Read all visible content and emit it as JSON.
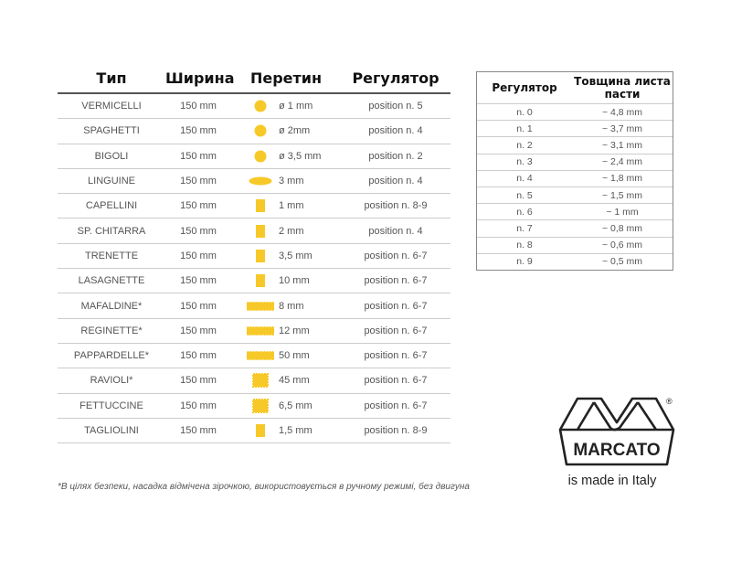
{
  "main_table": {
    "headers": [
      "Тип",
      "Ширина",
      "Перетин",
      "Регулятор"
    ],
    "rows": [
      {
        "type": "VERMICELLI",
        "width": "150 mm",
        "shape": "circle",
        "section": "ø 1 mm",
        "regulator": "position n. 5"
      },
      {
        "type": "SPAGHETTI",
        "width": "150 mm",
        "shape": "circle",
        "section": "ø 2mm",
        "regulator": "position n. 4"
      },
      {
        "type": "BIGOLI",
        "width": "150 mm",
        "shape": "circle",
        "section": "ø 3,5 mm",
        "regulator": "position n. 2"
      },
      {
        "type": "LINGUINE",
        "width": "150 mm",
        "shape": "ellipse",
        "section": "3 mm",
        "regulator": "position n. 4"
      },
      {
        "type": "CAPELLINI",
        "width": "150 mm",
        "shape": "square",
        "section": "1 mm",
        "regulator": "position n. 8-9"
      },
      {
        "type": "SP. CHITARRA",
        "width": "150 mm",
        "shape": "square",
        "section": "2 mm",
        "regulator": "position n. 4"
      },
      {
        "type": "TRENETTE",
        "width": "150 mm",
        "shape": "square",
        "section": "3,5 mm",
        "regulator": "position n. 6-7"
      },
      {
        "type": "LASAGNETTE",
        "width": "150 mm",
        "shape": "square",
        "section": "10 mm",
        "regulator": "position n. 6-7"
      },
      {
        "type": "MAFALDINE*",
        "width": "150 mm",
        "shape": "wavy-wide",
        "section": "8 mm",
        "regulator": "position n. 6-7"
      },
      {
        "type": "REGINETTE*",
        "width": "150 mm",
        "shape": "wavy-wide",
        "section": "12 mm",
        "regulator": "position n. 6-7"
      },
      {
        "type": "PAPPARDELLE*",
        "width": "150 mm",
        "shape": "wavy-wide",
        "section": "50 mm",
        "regulator": "position n. 6-7"
      },
      {
        "type": "RAVIOLI*",
        "width": "150 mm",
        "shape": "wavy-square",
        "section": "45 mm",
        "regulator": "position n. 6-7"
      },
      {
        "type": "FETTUCCINE",
        "width": "150 mm",
        "shape": "wavy-square",
        "section": "6,5 mm",
        "regulator": "position n. 6-7"
      },
      {
        "type": "TAGLIOLINI",
        "width": "150 mm",
        "shape": "square",
        "section": "1,5 mm",
        "regulator": "position n. 8-9"
      }
    ]
  },
  "thickness_table": {
    "headers": [
      "Регулятор",
      "Товщина листа пасти"
    ],
    "rows": [
      {
        "position": "n. 0",
        "thickness": "~ 4,8 mm"
      },
      {
        "position": "n. 1",
        "thickness": "~ 3,7 mm"
      },
      {
        "position": "n. 2",
        "thickness": "~ 3,1 mm"
      },
      {
        "position": "n. 3",
        "thickness": "~ 2,4 mm"
      },
      {
        "position": "n. 4",
        "thickness": "~ 1,8 mm"
      },
      {
        "position": "n. 5",
        "thickness": "~ 1,5 mm"
      },
      {
        "position": "n. 6",
        "thickness": "~ 1 mm"
      },
      {
        "position": "n. 7",
        "thickness": "~ 0,8 mm"
      },
      {
        "position": "n. 8",
        "thickness": "~ 0,6 mm"
      },
      {
        "position": "n. 9",
        "thickness": "~ 0,5 mm"
      }
    ]
  },
  "footnote": "*В цілях безпеки, насадка відмічена зірочкою, використовується в ручному режимі, без двигуна",
  "brand": {
    "logo_text": "MARCATO",
    "registered": "®",
    "tagline": "is made in Italy"
  },
  "colors": {
    "pasta_yellow": "#f7c928",
    "text": "#555555",
    "heading": "#111111"
  }
}
